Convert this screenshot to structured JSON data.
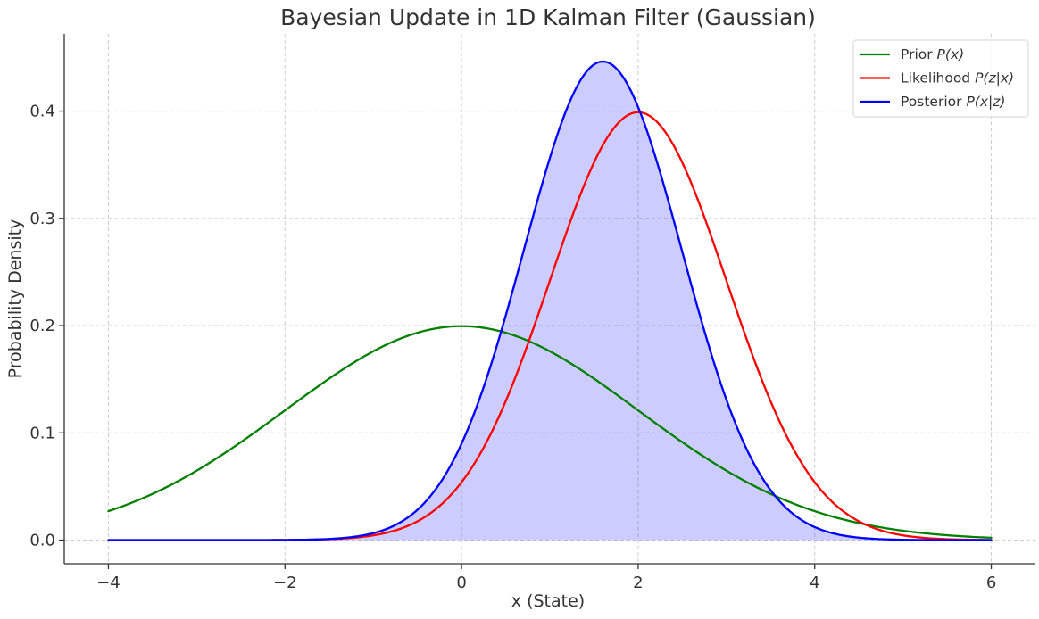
{
  "chart_data": {
    "type": "line",
    "title": "Bayesian Update in 1D Kalman Filter (Gaussian)",
    "xlabel": "x (State)",
    "ylabel": "Probability Density",
    "xlim": [
      -4.5,
      6.5
    ],
    "ylim": [
      -0.022,
      0.472
    ],
    "xticks": [
      -4,
      -2,
      0,
      2,
      4,
      6
    ],
    "xtick_labels": [
      "−4",
      "−2",
      "0",
      "2",
      "4",
      "6"
    ],
    "yticks": [
      0.0,
      0.1,
      0.2,
      0.3,
      0.4
    ],
    "ytick_labels": [
      "0.0",
      "0.1",
      "0.2",
      "0.3",
      "0.4"
    ],
    "grid": true,
    "legend_position": "top-right",
    "x_range": [
      -4,
      6
    ],
    "series": [
      {
        "name": "Prior P(x)",
        "legend_plain": "Prior ",
        "legend_italic": "P(x)",
        "color": "#008000",
        "distribution": "normal",
        "mean": 0,
        "std": 2,
        "fill": false
      },
      {
        "name": "Likelihood P(z|x)",
        "legend_plain": "Likelihood ",
        "legend_italic": "P(z|x)",
        "color": "#ff0000",
        "distribution": "normal",
        "mean": 2,
        "std": 1,
        "fill": false
      },
      {
        "name": "Posterior P(x|z)",
        "legend_plain": "Posterior ",
        "legend_italic": "P(x|z)",
        "color": "#0000ff",
        "distribution": "normal",
        "mean": 1.6,
        "std": 0.894,
        "fill": true,
        "fill_color": "#0000ff",
        "fill_opacity": 0.2
      }
    ]
  }
}
